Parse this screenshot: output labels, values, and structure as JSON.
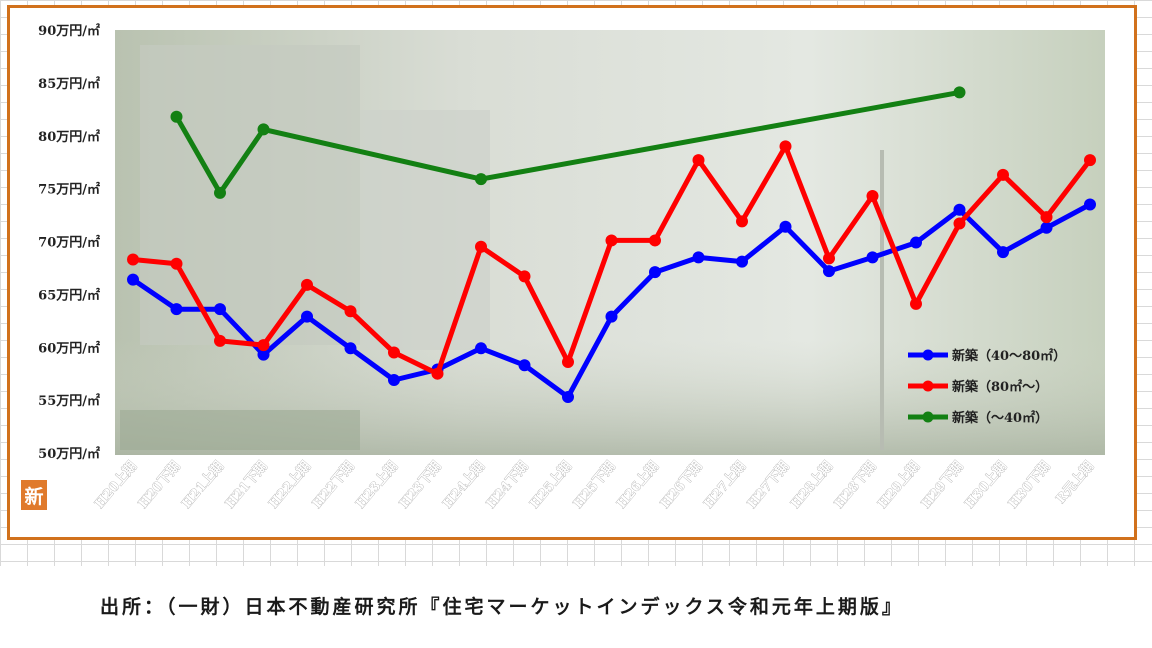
{
  "badge": "新",
  "source": "出所：（一財）日本不動産研究所『住宅マーケットインデックス令和元年上期版』",
  "chart_data": {
    "type": "line",
    "title": "",
    "xlabel": "",
    "ylabel": "",
    "ylim": [
      50,
      90
    ],
    "y_ticks": [
      50,
      55,
      60,
      65,
      70,
      75,
      80,
      85,
      90
    ],
    "y_tick_suffix": "万円/㎡",
    "grid": false,
    "legend_position": "bottom-right",
    "categories": [
      "H20上期",
      "H20下期",
      "H21上期",
      "H21下期",
      "H22上期",
      "H22下期",
      "H23上期",
      "H23下期",
      "H24上期",
      "H24下期",
      "H25上期",
      "H25下期",
      "H26上期",
      "H26下期",
      "H27上期",
      "H27下期",
      "H28上期",
      "H28下期",
      "H29上期",
      "H29下期",
      "H30上期",
      "H30下期",
      "R元上期"
    ],
    "series": [
      {
        "name": "新築（40～80㎡）",
        "color": "#0000ff",
        "values": [
          66.4,
          63.6,
          63.6,
          59.3,
          62.9,
          59.9,
          56.9,
          57.9,
          59.9,
          58.3,
          55.3,
          62.9,
          67.1,
          68.5,
          68.1,
          71.4,
          67.2,
          68.5,
          69.9,
          73.0,
          69.0,
          71.3,
          73.5
        ]
      },
      {
        "name": "新築（80㎡～）",
        "color": "#ff0000",
        "values": [
          68.3,
          67.9,
          60.6,
          60.2,
          65.9,
          63.4,
          59.5,
          57.5,
          69.5,
          66.7,
          58.6,
          70.1,
          70.1,
          77.7,
          71.9,
          79.0,
          68.4,
          74.3,
          64.1,
          71.7,
          76.3,
          72.3,
          77.7
        ]
      },
      {
        "name": "新築（～40㎡）",
        "color": "#138013",
        "values": [
          null,
          81.8,
          74.6,
          80.6,
          null,
          null,
          null,
          null,
          75.9,
          null,
          null,
          null,
          null,
          null,
          null,
          null,
          null,
          null,
          null,
          84.1,
          null,
          null,
          null
        ]
      }
    ]
  }
}
